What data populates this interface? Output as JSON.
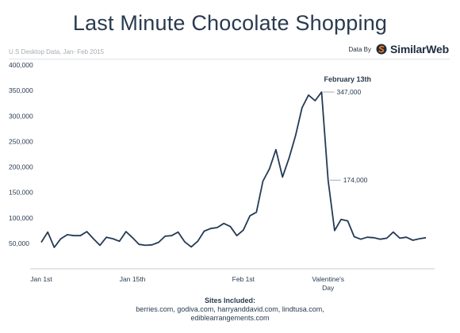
{
  "header": {
    "title": "Last Minute Chocolate Shopping",
    "subtitle": "U.S Desktop Data, Jan- Feb 2015",
    "credit_prefix": "Data By",
    "brand_name": "SimilarWeb"
  },
  "footer": {
    "sites_heading": "Sites Included:",
    "sites_line1": "berries.com, godiva.com, harryanddavid.com, lindtusa.com,",
    "sites_line2": "ediblearrangements.com"
  },
  "colors": {
    "line": "#243a55",
    "axis": "#c9ccd1",
    "text": "#2a3b50",
    "brand_orange": "#f47a20"
  },
  "chart_data": {
    "type": "line",
    "title": "Last Minute Chocolate Shopping",
    "xlabel": "",
    "ylabel": "",
    "ylim": [
      0,
      400000
    ],
    "xlim": [
      1,
      60
    ],
    "y_ticks": [
      50000,
      100000,
      150000,
      200000,
      250000,
      300000,
      350000,
      400000
    ],
    "y_tick_labels": [
      "50,000",
      "100,000",
      "150,000",
      "200,000",
      "250,000",
      "300,000",
      "350,000",
      "400,000"
    ],
    "x_ticks": [
      {
        "day": 1,
        "label": [
          "Jan 1st"
        ]
      },
      {
        "day": 15,
        "label": [
          "Jan 15th"
        ]
      },
      {
        "day": 32,
        "label": [
          "Feb 1st"
        ]
      },
      {
        "day": 45,
        "label": [
          "Valentine's",
          "Day"
        ]
      }
    ],
    "grid": false,
    "series": [
      {
        "x": [
          1,
          2,
          3,
          4,
          5,
          6,
          7,
          8,
          9,
          10,
          11,
          12,
          13,
          14,
          15,
          16,
          17,
          18,
          19,
          20,
          21,
          22,
          23,
          24,
          25,
          26,
          27,
          28,
          29,
          30,
          31,
          32,
          33,
          34,
          35,
          36,
          37,
          38,
          39,
          40,
          41,
          42,
          43,
          44,
          45,
          46,
          47,
          48,
          49,
          50,
          51,
          52,
          53,
          54,
          55,
          56,
          57,
          58,
          59,
          60
        ],
        "values": [
          52000,
          72000,
          42000,
          59000,
          67000,
          65000,
          65000,
          73000,
          59000,
          46000,
          62000,
          59000,
          54000,
          73000,
          61000,
          48000,
          46000,
          47000,
          52000,
          64000,
          65000,
          72000,
          53000,
          43000,
          54000,
          74000,
          79000,
          81000,
          89000,
          83000,
          65000,
          76000,
          104000,
          111000,
          172000,
          196000,
          234000,
          180000,
          217000,
          261000,
          316000,
          341000,
          330000,
          347000,
          174000,
          75000,
          97000,
          94000,
          63000,
          58000,
          62000,
          61000,
          58000,
          60000,
          72000,
          60000,
          62000,
          56000,
          59000,
          61000
        ]
      }
    ],
    "annotations": [
      {
        "day": 44,
        "value": 347000,
        "label": "347,000",
        "heading": "February 13th"
      },
      {
        "day": 45,
        "value": 174000,
        "label": "174,000"
      }
    ]
  }
}
